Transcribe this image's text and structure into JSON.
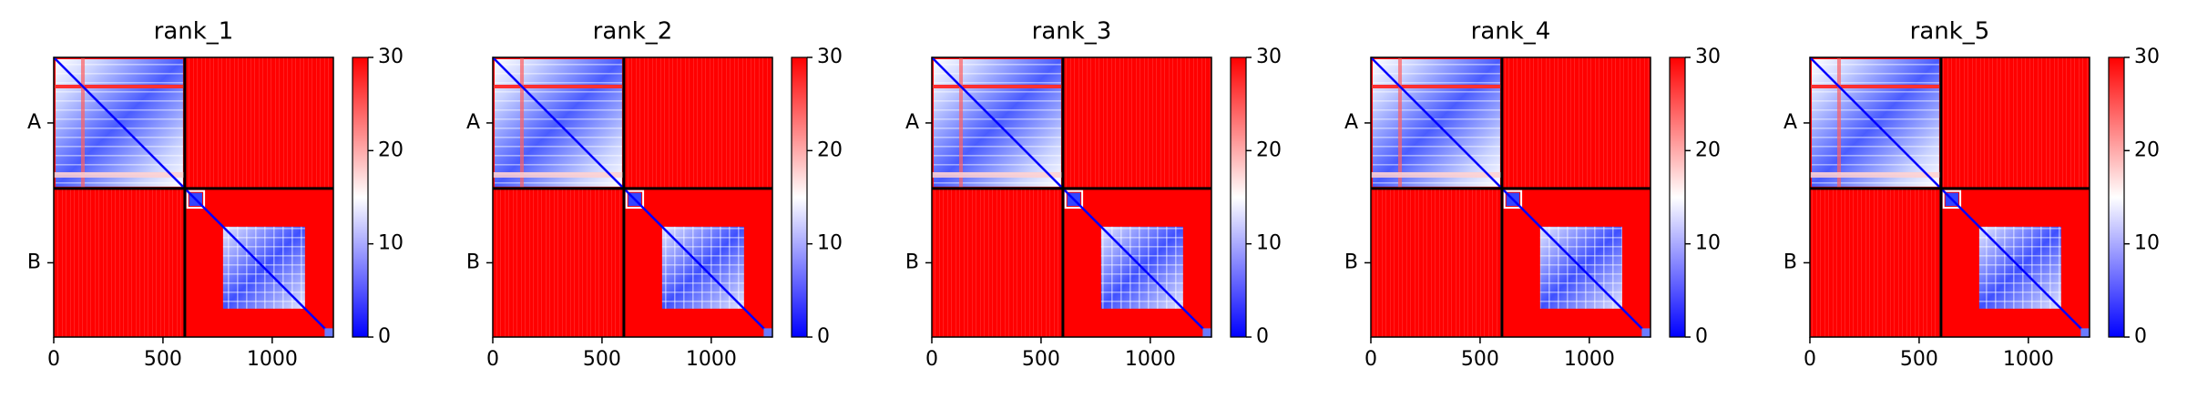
{
  "chart_data": [
    {
      "type": "heatmap",
      "title": "rank_1",
      "x_ticks": [
        "0",
        "500",
        "1000"
      ],
      "x_tick_values": [
        0,
        500,
        1000
      ],
      "xlim": [
        0,
        1280
      ],
      "chains": [
        "A",
        "B"
      ],
      "chain_boundaries": [
        0,
        600,
        1280
      ],
      "colorbar": {
        "min": 0,
        "max": 30,
        "ticks": [
          "0",
          "10",
          "20",
          "30"
        ],
        "tick_values": [
          0,
          10,
          20,
          30
        ],
        "colors": [
          "#0000ff",
          "#ffffff",
          "#ff0000"
        ]
      }
    },
    {
      "type": "heatmap",
      "title": "rank_2",
      "x_ticks": [
        "0",
        "500",
        "1000"
      ],
      "x_tick_values": [
        0,
        500,
        1000
      ],
      "xlim": [
        0,
        1280
      ],
      "chains": [
        "A",
        "B"
      ],
      "chain_boundaries": [
        0,
        600,
        1280
      ],
      "colorbar": {
        "min": 0,
        "max": 30,
        "ticks": [
          "0",
          "10",
          "20",
          "30"
        ],
        "tick_values": [
          0,
          10,
          20,
          30
        ],
        "colors": [
          "#0000ff",
          "#ffffff",
          "#ff0000"
        ]
      }
    },
    {
      "type": "heatmap",
      "title": "rank_3",
      "x_ticks": [
        "0",
        "500",
        "1000"
      ],
      "x_tick_values": [
        0,
        500,
        1000
      ],
      "xlim": [
        0,
        1280
      ],
      "chains": [
        "A",
        "B"
      ],
      "chain_boundaries": [
        0,
        600,
        1280
      ],
      "colorbar": {
        "min": 0,
        "max": 30,
        "ticks": [
          "0",
          "10",
          "20",
          "30"
        ],
        "tick_values": [
          0,
          10,
          20,
          30
        ],
        "colors": [
          "#0000ff",
          "#ffffff",
          "#ff0000"
        ]
      }
    },
    {
      "type": "heatmap",
      "title": "rank_4",
      "x_ticks": [
        "0",
        "500",
        "1000"
      ],
      "x_tick_values": [
        0,
        500,
        1000
      ],
      "xlim": [
        0,
        1280
      ],
      "chains": [
        "A",
        "B"
      ],
      "chain_boundaries": [
        0,
        600,
        1280
      ],
      "colorbar": {
        "min": 0,
        "max": 30,
        "ticks": [
          "0",
          "10",
          "20",
          "30"
        ],
        "tick_values": [
          0,
          10,
          20,
          30
        ],
        "colors": [
          "#0000ff",
          "#ffffff",
          "#ff0000"
        ]
      }
    },
    {
      "type": "heatmap",
      "title": "rank_5",
      "x_ticks": [
        "0",
        "500",
        "1000"
      ],
      "x_tick_values": [
        0,
        500,
        1000
      ],
      "xlim": [
        0,
        1280
      ],
      "chains": [
        "A",
        "B"
      ],
      "chain_boundaries": [
        0,
        600,
        1280
      ],
      "colorbar": {
        "min": 0,
        "max": 30,
        "ticks": [
          "0",
          "10",
          "20",
          "30"
        ],
        "tick_values": [
          0,
          10,
          20,
          30
        ],
        "colors": [
          "#0000ff",
          "#ffffff",
          "#ff0000"
        ]
      }
    }
  ]
}
